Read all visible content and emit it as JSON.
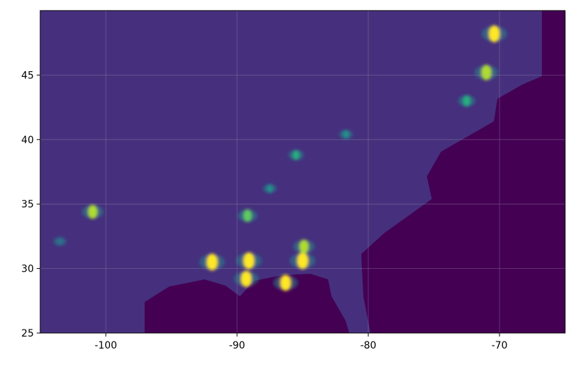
{
  "chart_data": {
    "type": "heatmap",
    "title": "",
    "xlabel": "",
    "ylabel": "",
    "xlim": [
      -105,
      -65
    ],
    "ylim": [
      25,
      50
    ],
    "xticks": [
      -100,
      -90,
      -80,
      -70
    ],
    "xtick_labels": [
      "-100",
      "-90",
      "-80",
      "-70"
    ],
    "yticks": [
      25,
      30,
      35,
      40,
      45
    ],
    "ytick_labels": [
      "25",
      "30",
      "35",
      "40",
      "45"
    ],
    "grid": true,
    "colormap": "viridis",
    "colors": {
      "background_value": "#46307e",
      "masked_ocean": "#440154"
    },
    "features": [
      {
        "lon": -91.9,
        "lat": 30.5,
        "intensity": 1.0
      },
      {
        "lon": -89.1,
        "lat": 30.6,
        "intensity": 1.0
      },
      {
        "lon": -89.3,
        "lat": 29.2,
        "intensity": 0.95
      },
      {
        "lon": -85.0,
        "lat": 30.6,
        "intensity": 1.0
      },
      {
        "lon": -86.3,
        "lat": 28.9,
        "intensity": 0.95
      },
      {
        "lon": -84.9,
        "lat": 31.7,
        "intensity": 0.8
      },
      {
        "lon": -89.2,
        "lat": 34.1,
        "intensity": 0.7
      },
      {
        "lon": -70.4,
        "lat": 48.2,
        "intensity": 1.0
      },
      {
        "lon": -71.0,
        "lat": 45.2,
        "intensity": 0.9
      },
      {
        "lon": -72.5,
        "lat": 43.0,
        "intensity": 0.6
      },
      {
        "lon": -81.7,
        "lat": 40.4,
        "intensity": 0.4
      },
      {
        "lon": -85.5,
        "lat": 38.8,
        "intensity": 0.5
      },
      {
        "lon": -87.5,
        "lat": 36.2,
        "intensity": 0.4
      },
      {
        "lon": -101.0,
        "lat": 34.4,
        "intensity": 0.8
      },
      {
        "lon": -103.5,
        "lat": 32.1,
        "intensity": 0.35
      }
    ]
  }
}
